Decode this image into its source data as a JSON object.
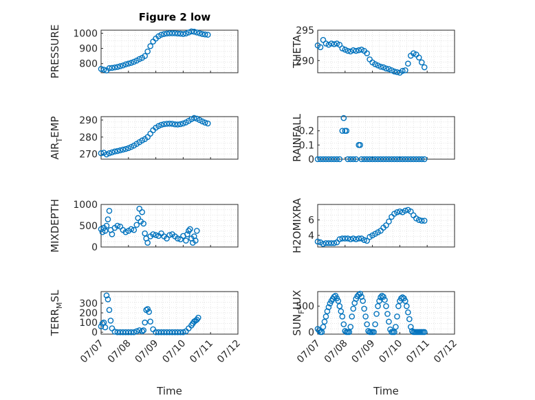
{
  "figure": {
    "title": "Figure 2 low"
  },
  "colors": {
    "marker": "#0072BD",
    "axis": "#262626",
    "grid": "#d9d9d9"
  },
  "chart_data": [
    {
      "type": "scatter",
      "ylabel": "PRESSURE",
      "ylim": [
        740,
        1020
      ],
      "yticks": [
        800,
        900,
        1000
      ],
      "xlim": [
        "07/07",
        "07/12"
      ],
      "xticks": [
        "07/07",
        "07/08",
        "07/09",
        "07/10",
        "07/11",
        "07/12"
      ],
      "grid": true,
      "x": [
        7.0,
        7.1,
        7.2,
        7.3,
        7.4,
        7.5,
        7.6,
        7.7,
        7.8,
        7.9,
        8.0,
        8.1,
        8.2,
        8.3,
        8.4,
        8.5,
        8.6,
        8.7,
        8.8,
        8.9,
        9.0,
        9.1,
        9.2,
        9.3,
        9.4,
        9.5,
        9.6,
        9.7,
        9.8,
        9.9,
        10.0,
        10.1,
        10.2,
        10.3,
        10.4,
        10.5,
        10.6,
        10.7,
        10.8,
        10.9
      ],
      "y": [
        765,
        760,
        755,
        770,
        772,
        775,
        778,
        783,
        788,
        795,
        800,
        805,
        812,
        820,
        830,
        838,
        850,
        880,
        915,
        945,
        965,
        980,
        990,
        995,
        998,
        1000,
        1000,
        1000,
        998,
        997,
        995,
        998,
        1005,
        1012,
        1010,
        1005,
        1000,
        995,
        992,
        990
      ]
    },
    {
      "type": "scatter",
      "ylabel": "THETA",
      "ylim": [
        288,
        295
      ],
      "yticks": [
        290,
        295
      ],
      "xlim": [
        "07/07",
        "07/12"
      ],
      "xticks": [
        "07/07",
        "07/08",
        "07/09",
        "07/10",
        "07/11",
        "07/12"
      ],
      "grid": true,
      "x": [
        7.0,
        7.1,
        7.2,
        7.3,
        7.4,
        7.5,
        7.6,
        7.7,
        7.8,
        7.9,
        8.0,
        8.1,
        8.2,
        8.3,
        8.4,
        8.5,
        8.6,
        8.7,
        8.8,
        8.9,
        9.0,
        9.1,
        9.2,
        9.3,
        9.4,
        9.5,
        9.6,
        9.7,
        9.8,
        9.9,
        10.0,
        10.1,
        10.2,
        10.3,
        10.4,
        10.5,
        10.6,
        10.7,
        10.8,
        10.9
      ],
      "y": [
        292.5,
        292.2,
        293.4,
        292.8,
        292.6,
        292.8,
        292.7,
        292.8,
        292.6,
        292.0,
        291.8,
        291.6,
        291.5,
        291.7,
        291.6,
        291.7,
        291.8,
        291.6,
        291.2,
        290.2,
        289.7,
        289.4,
        289.2,
        289.0,
        288.9,
        288.7,
        288.6,
        288.4,
        288.2,
        288.1,
        288.0,
        288.3,
        288.4,
        289.5,
        290.8,
        291.2,
        291.0,
        290.5,
        289.7,
        288.9
      ]
    },
    {
      "type": "scatter",
      "ylabel": "AIR_T_EMP",
      "ylim": [
        267,
        292
      ],
      "yticks": [
        270,
        280,
        290
      ],
      "xlim": [
        "07/07",
        "07/12"
      ],
      "xticks": [
        "07/07",
        "07/08",
        "07/09",
        "07/10",
        "07/11",
        "07/12"
      ],
      "grid": true,
      "x": [
        7.0,
        7.1,
        7.2,
        7.3,
        7.4,
        7.5,
        7.6,
        7.7,
        7.8,
        7.9,
        8.0,
        8.1,
        8.2,
        8.3,
        8.4,
        8.5,
        8.6,
        8.7,
        8.8,
        8.9,
        9.0,
        9.1,
        9.2,
        9.3,
        9.4,
        9.5,
        9.6,
        9.7,
        9.8,
        9.9,
        10.0,
        10.1,
        10.2,
        10.3,
        10.4,
        10.5,
        10.6,
        10.7,
        10.8,
        10.9
      ],
      "y": [
        270.5,
        270.8,
        269.8,
        270.5,
        271.0,
        271.5,
        271.8,
        272.2,
        272.6,
        273.0,
        273.5,
        274.2,
        275.0,
        276.0,
        277.0,
        278.0,
        278.8,
        280.0,
        282.0,
        284.0,
        285.5,
        286.5,
        287.2,
        287.6,
        287.8,
        287.9,
        287.8,
        287.5,
        287.4,
        287.6,
        288.0,
        288.6,
        289.5,
        290.5,
        291.2,
        290.8,
        290.0,
        289.2,
        288.5,
        288.0
      ]
    },
    {
      "type": "scatter",
      "ylabel": "RAINFALL",
      "ylim": [
        0,
        0.3
      ],
      "yticks": [
        0,
        0.1,
        0.2
      ],
      "xlim": [
        "07/07",
        "07/12"
      ],
      "xticks": [
        "07/07",
        "07/08",
        "07/09",
        "07/10",
        "07/11",
        "07/12"
      ],
      "grid": true,
      "x": [
        7.0,
        7.1,
        7.2,
        7.3,
        7.4,
        7.5,
        7.6,
        7.7,
        7.8,
        7.9,
        7.95,
        8.0,
        8.05,
        8.1,
        8.2,
        8.3,
        8.4,
        8.5,
        8.55,
        8.6,
        8.7,
        8.8,
        8.9,
        9.0,
        9.1,
        9.2,
        9.3,
        9.4,
        9.5,
        9.6,
        9.7,
        9.8,
        9.9,
        10.0,
        10.1,
        10.2,
        10.3,
        10.4,
        10.5,
        10.6,
        10.7,
        10.8,
        10.9
      ],
      "y": [
        0,
        0,
        0,
        0,
        0,
        0,
        0,
        0,
        0,
        0.2,
        0.29,
        0.2,
        0.2,
        0,
        0,
        0,
        0,
        0.1,
        0.1,
        0,
        0,
        0,
        0,
        0,
        0,
        0,
        0,
        0,
        0,
        0,
        0,
        0,
        0,
        0,
        0,
        0,
        0,
        0,
        0,
        0,
        0,
        0,
        0
      ]
    },
    {
      "type": "scatter",
      "ylabel": "MIXDEPTH",
      "ylim": [
        0,
        1000
      ],
      "yticks": [
        0,
        500,
        1000
      ],
      "xlim": [
        "07/07",
        "07/12"
      ],
      "xticks": [
        "07/07",
        "07/08",
        "07/09",
        "07/10",
        "07/11",
        "07/12"
      ],
      "grid": true,
      "x": [
        7.0,
        7.05,
        7.1,
        7.15,
        7.2,
        7.25,
        7.3,
        7.35,
        7.4,
        7.5,
        7.6,
        7.7,
        7.8,
        7.9,
        8.0,
        8.1,
        8.2,
        8.3,
        8.35,
        8.4,
        8.45,
        8.5,
        8.55,
        8.6,
        8.65,
        8.7,
        8.8,
        8.9,
        9.0,
        9.1,
        9.2,
        9.3,
        9.4,
        9.5,
        9.6,
        9.7,
        9.8,
        9.9,
        10.0,
        10.1,
        10.15,
        10.2,
        10.25,
        10.3,
        10.35,
        10.4,
        10.45,
        10.5
      ],
      "y": [
        420,
        350,
        450,
        380,
        500,
        650,
        850,
        400,
        300,
        450,
        500,
        480,
        400,
        350,
        380,
        420,
        400,
        520,
        680,
        900,
        600,
        820,
        550,
        320,
        200,
        100,
        250,
        300,
        280,
        260,
        320,
        250,
        200,
        280,
        300,
        250,
        200,
        180,
        260,
        150,
        300,
        380,
        420,
        200,
        100,
        250,
        150,
        380
      ]
    },
    {
      "type": "scatter",
      "ylabel": "H2OMIXRA",
      "ylim": [
        2.5,
        8
      ],
      "yticks": [
        4,
        6
      ],
      "xlim": [
        "07/07",
        "07/12"
      ],
      "xticks": [
        "07/07",
        "07/08",
        "07/09",
        "07/10",
        "07/11",
        "07/12"
      ],
      "grid": true,
      "x": [
        7.0,
        7.1,
        7.2,
        7.3,
        7.4,
        7.5,
        7.6,
        7.7,
        7.8,
        7.9,
        8.0,
        8.1,
        8.2,
        8.3,
        8.4,
        8.5,
        8.6,
        8.7,
        8.8,
        8.9,
        9.0,
        9.1,
        9.2,
        9.3,
        9.4,
        9.5,
        9.6,
        9.7,
        9.8,
        9.9,
        10.0,
        10.1,
        10.2,
        10.3,
        10.4,
        10.5,
        10.6,
        10.7,
        10.8,
        10.9
      ],
      "y": [
        3.2,
        3.1,
        2.9,
        3.0,
        3.0,
        3.0,
        3.0,
        3.1,
        3.5,
        3.6,
        3.6,
        3.6,
        3.5,
        3.6,
        3.5,
        3.6,
        3.6,
        3.4,
        3.3,
        3.8,
        4.0,
        4.2,
        4.4,
        4.6,
        5.0,
        5.3,
        5.8,
        6.4,
        6.8,
        7.0,
        7.1,
        7.0,
        7.2,
        7.3,
        7.1,
        6.6,
        6.2,
        6.0,
        5.9,
        5.9
      ]
    },
    {
      "type": "scatter",
      "ylabel": "TERR_M_SL",
      "ylim": [
        -20,
        420
      ],
      "yticks": [
        0,
        100,
        200,
        300
      ],
      "xlim": [
        "07/07",
        "07/12"
      ],
      "xticks": [
        "07/07",
        "07/08",
        "07/09",
        "07/10",
        "07/11",
        "07/12"
      ],
      "xlabel": "Time",
      "grid": true,
      "x": [
        7.0,
        7.05,
        7.1,
        7.15,
        7.2,
        7.25,
        7.3,
        7.35,
        7.4,
        7.5,
        7.6,
        7.7,
        7.8,
        7.9,
        8.0,
        8.1,
        8.2,
        8.3,
        8.4,
        8.5,
        8.55,
        8.6,
        8.65,
        8.7,
        8.75,
        8.8,
        8.9,
        9.0,
        9.1,
        9.2,
        9.3,
        9.4,
        9.5,
        9.6,
        9.7,
        9.8,
        9.9,
        10.0,
        10.1,
        10.2,
        10.3,
        10.35,
        10.4,
        10.45,
        10.5,
        10.55
      ],
      "y": [
        60,
        90,
        100,
        50,
        380,
        340,
        230,
        120,
        40,
        5,
        0,
        0,
        0,
        0,
        0,
        0,
        0,
        10,
        20,
        10,
        20,
        100,
        230,
        240,
        210,
        110,
        30,
        0,
        0,
        0,
        0,
        0,
        0,
        0,
        0,
        0,
        0,
        0,
        10,
        40,
        70,
        90,
        110,
        120,
        130,
        150
      ]
    },
    {
      "type": "scatter",
      "ylabel": "SUN_F_LUX",
      "ylim": [
        -40,
        780
      ],
      "yticks": [
        0,
        500
      ],
      "xlim": [
        "07/07",
        "07/12"
      ],
      "xticks": [
        "07/07",
        "07/08",
        "07/09",
        "07/10",
        "07/11",
        "07/12"
      ],
      "xlabel": "Time",
      "grid": true,
      "x": [
        7.0,
        7.05,
        7.1,
        7.15,
        7.2,
        7.25,
        7.3,
        7.35,
        7.4,
        7.45,
        7.5,
        7.55,
        7.6,
        7.65,
        7.7,
        7.75,
        7.8,
        7.85,
        7.9,
        7.95,
        8.0,
        8.05,
        8.1,
        8.15,
        8.2,
        8.25,
        8.3,
        8.35,
        8.4,
        8.45,
        8.5,
        8.55,
        8.6,
        8.65,
        8.7,
        8.75,
        8.8,
        8.85,
        8.9,
        8.95,
        9.0,
        9.05,
        9.1,
        9.15,
        9.2,
        9.25,
        9.3,
        9.35,
        9.4,
        9.45,
        9.5,
        9.55,
        9.6,
        9.65,
        9.7,
        9.75,
        9.8,
        9.85,
        9.9,
        9.95,
        10.0,
        10.05,
        10.1,
        10.15,
        10.2,
        10.25,
        10.3,
        10.35,
        10.4,
        10.45,
        10.5,
        10.55,
        10.6,
        10.65,
        10.7,
        10.75,
        10.8,
        10.85,
        10.9
      ],
      "y": [
        60,
        30,
        0,
        0,
        100,
        200,
        300,
        400,
        480,
        550,
        600,
        640,
        680,
        700,
        650,
        600,
        500,
        400,
        300,
        150,
        20,
        0,
        0,
        0,
        100,
        300,
        450,
        560,
        640,
        690,
        720,
        740,
        680,
        600,
        450,
        300,
        150,
        20,
        0,
        0,
        0,
        0,
        150,
        350,
        500,
        600,
        670,
        700,
        680,
        620,
        500,
        350,
        200,
        50,
        0,
        0,
        0,
        100,
        300,
        500,
        600,
        650,
        670,
        650,
        600,
        500,
        380,
        250,
        100,
        20,
        0,
        0,
        0,
        0,
        0,
        0,
        0,
        0,
        0
      ]
    }
  ]
}
